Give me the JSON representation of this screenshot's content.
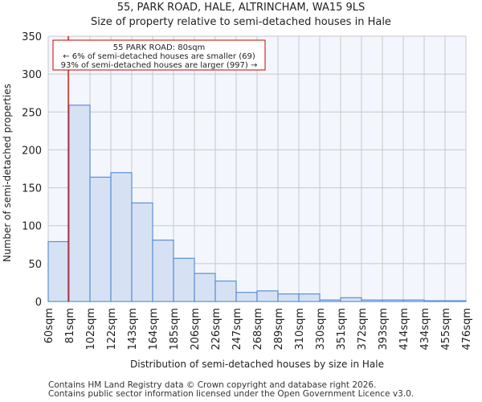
{
  "chart_data": {
    "type": "bar",
    "title": "55, PARK ROAD, HALE, ALTRINCHAM, WA15 9LS",
    "subtitle": "Size of property relative to semi-detached houses in Hale",
    "xlabel": "Distribution of semi-detached houses by size in Hale",
    "ylabel": "Number of semi-detached properties",
    "ylim": [
      0,
      350
    ],
    "yticks": [
      0,
      50,
      100,
      150,
      200,
      250,
      300,
      350
    ],
    "xtick_labels": [
      "60sqm",
      "81sqm",
      "102sqm",
      "122sqm",
      "143sqm",
      "164sqm",
      "185sqm",
      "206sqm",
      "226sqm",
      "247sqm",
      "268sqm",
      "289sqm",
      "310sqm",
      "330sqm",
      "351sqm",
      "372sqm",
      "393sqm",
      "414sqm",
      "434sqm",
      "455sqm",
      "476sqm"
    ],
    "values": [
      79,
      259,
      164,
      170,
      130,
      81,
      57,
      37,
      27,
      12,
      14,
      10,
      10,
      2,
      5,
      2,
      2,
      2,
      1,
      1
    ],
    "grid": true,
    "bar_color": "#d6e2f3",
    "bar_edge": "#5b8fd6",
    "marker": {
      "value_sqm": 80,
      "color": "#cc0000"
    },
    "annotation": {
      "line1": "55 PARK ROAD: 80sqm",
      "line2": "← 6% of semi-detached houses are smaller (69)",
      "line3": "93% of semi-detached houses are larger (997) →"
    }
  },
  "footer": {
    "line1": "Contains HM Land Registry data © Crown copyright and database right 2026.",
    "line2": "Contains public sector information licensed under the Open Government Licence v3.0."
  }
}
